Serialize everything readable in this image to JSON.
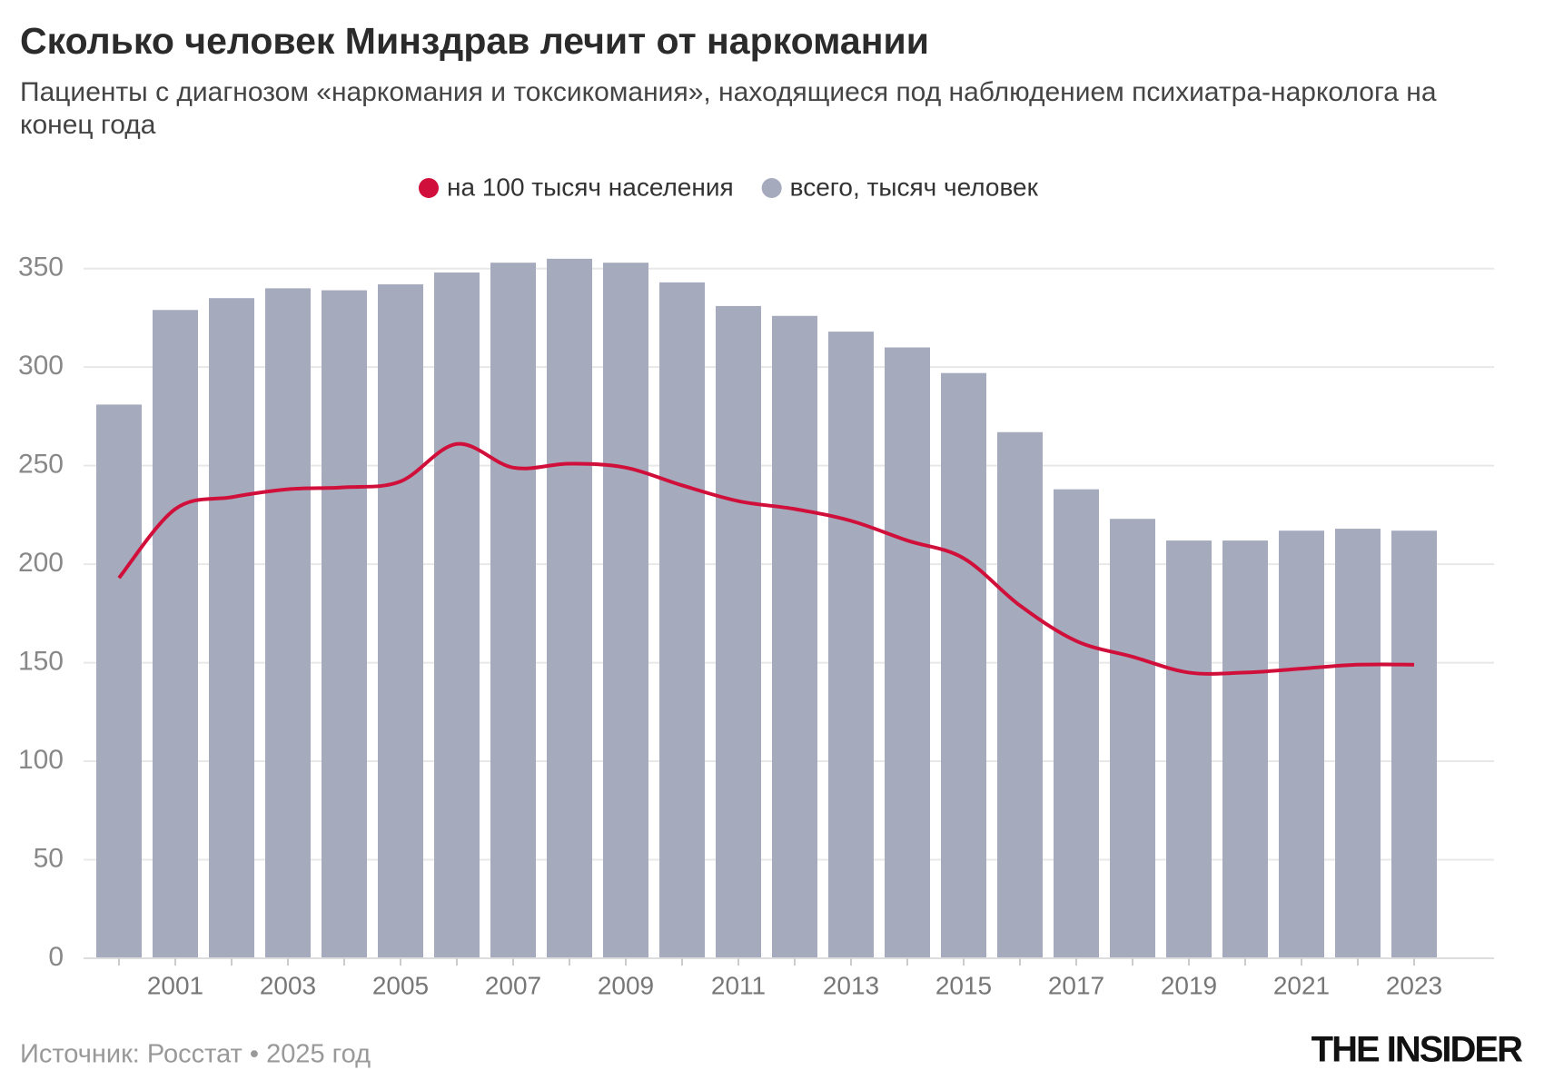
{
  "chart_data": {
    "type": "bar",
    "title": "Сколько человек Минздрав лечит от наркомании",
    "subtitle": "Пациенты с диагнозом «наркомания и токсикомания», находящиеся под наблюдением психиатра-нарколога на конец года",
    "categories": [
      null,
      "2001",
      null,
      "2003",
      null,
      "2005",
      null,
      "2007",
      null,
      "2009",
      null,
      "2011",
      null,
      "2013",
      null,
      "2015",
      null,
      "2017",
      null,
      "2019",
      null,
      "2021",
      null,
      "2023"
    ],
    "series": [
      {
        "name": "на 100 тысяч населения",
        "color": "#d0103a",
        "type": "line",
        "values": [
          193,
          228,
          234,
          238,
          239,
          242,
          261,
          249,
          251,
          249,
          240,
          232,
          228,
          222,
          212,
          203,
          179,
          161,
          153,
          145,
          145,
          147,
          149,
          149
        ]
      },
      {
        "name": "всего, тысяч человек",
        "color": "#a5abbd",
        "type": "bar",
        "values": [
          281,
          329,
          335,
          340,
          339,
          342,
          348,
          353,
          355,
          353,
          343,
          331,
          326,
          318,
          310,
          297,
          267,
          238,
          223,
          212,
          212,
          217,
          218,
          217
        ]
      }
    ],
    "ylim": [
      0,
      360
    ],
    "yticks": [
      0,
      50,
      100,
      150,
      200,
      250,
      300,
      350
    ],
    "grid": true,
    "source": "Источник: Росстат • 2025 год",
    "brand": "THE INSIDER"
  }
}
